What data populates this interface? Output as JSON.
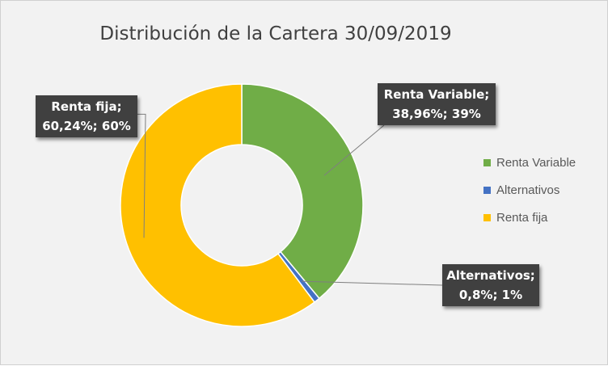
{
  "chart_data": {
    "type": "pie",
    "title": "Distribución de la Cartera 30/09/2019",
    "donut": true,
    "slices": [
      {
        "name": "Renta Variable",
        "percent": 38.96,
        "label_line1": "Renta Variable;",
        "label_line2": "38,96%; 39%",
        "color": "#70ad47"
      },
      {
        "name": "Alternativos",
        "percent": 0.8,
        "label_line1": "Alternativos;",
        "label_line2": "0,8%; 1%",
        "color": "#4472c4"
      },
      {
        "name": "Renta fija",
        "percent": 60.24,
        "label_line1": "Renta fija;",
        "label_line2": "60,24%; 60%",
        "color": "#ffc000"
      }
    ],
    "legend": {
      "position": "right",
      "entries": [
        "Renta Variable",
        "Alternativos",
        "Renta fija"
      ]
    },
    "colors": {
      "background": "#f2f2f2",
      "callout_bg": "#404040",
      "leader_line": "#7f7f7f"
    }
  }
}
